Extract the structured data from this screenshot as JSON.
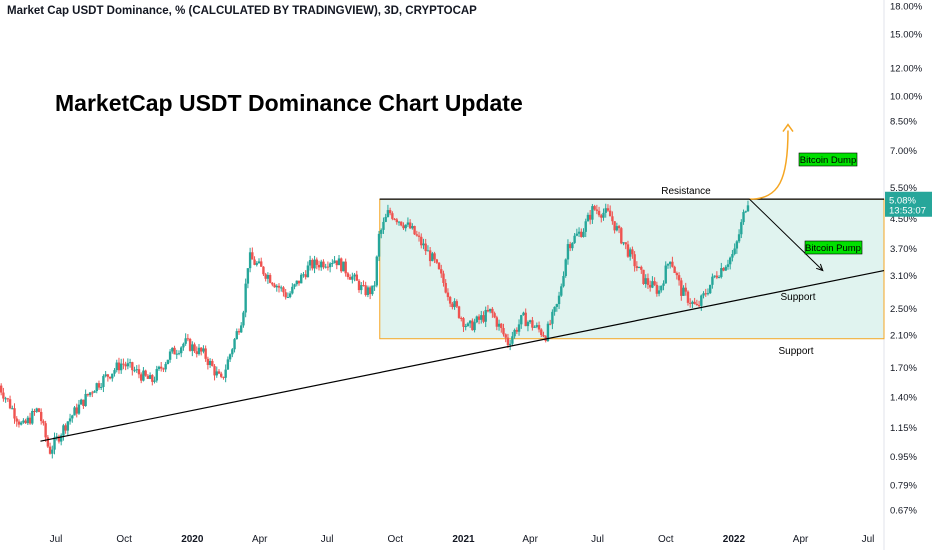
{
  "header": {
    "symbol_line": "Market Cap USDT Dominance, % (CALCULATED BY TRADINGVIEW), 3D, CRYPTOCAP"
  },
  "annotations": {
    "title": "MarketCap USDT Dominance Chart Update",
    "resistance": "Resistance",
    "support_upper": "Support",
    "support_lower": "Support",
    "bitcoin_dump": "Bitcoin Dump",
    "bitcoin_pump": "Bitcoin Pump"
  },
  "price_tag": {
    "value": "5.08%",
    "countdown": "13:53:07"
  },
  "colors": {
    "up": "#26a69a",
    "down": "#ef5350",
    "zone_fill": "#e0f3ef",
    "zone_border": "#f5a623",
    "trend_line": "#000000",
    "arrow_orange": "#f5a623",
    "label_green": "#00e000",
    "tag_bg": "#26a69a",
    "axis_text": "#131722"
  },
  "chart_data": {
    "type": "candlestick",
    "scale": "log",
    "timeframe": "3D",
    "y_ticks": [
      "18.00%",
      "15.00%",
      "12.00%",
      "10.00%",
      "8.50%",
      "7.00%",
      "5.50%",
      "4.50%",
      "3.70%",
      "3.10%",
      "2.50%",
      "2.10%",
      "1.70%",
      "1.40%",
      "1.15%",
      "0.95%",
      "0.79%",
      "0.67%"
    ],
    "y_tick_values": [
      18,
      15,
      12,
      10,
      8.5,
      7,
      5.5,
      4.5,
      3.7,
      3.1,
      2.5,
      2.1,
      1.7,
      1.4,
      1.15,
      0.95,
      0.79,
      0.67
    ],
    "x_ticks": [
      "Jul",
      "Oct",
      "2020",
      "Apr",
      "Jul",
      "Oct",
      "2021",
      "Apr",
      "Jul",
      "Oct",
      "2022",
      "Apr",
      "Jul"
    ],
    "x_tick_dates": [
      "2019-07-01",
      "2019-10-01",
      "2020-01-01",
      "2020-04-01",
      "2020-07-01",
      "2020-10-01",
      "2021-01-01",
      "2021-04-01",
      "2021-07-01",
      "2021-10-01",
      "2022-01-01",
      "2022-04-01",
      "2022-07-01"
    ],
    "path": [
      [
        "2019-04-15",
        1.55
      ],
      [
        "2019-05-20",
        1.15
      ],
      [
        "2019-06-10",
        1.3
      ],
      [
        "2019-06-25",
        0.98
      ],
      [
        "2019-07-20",
        1.2
      ],
      [
        "2019-08-25",
        1.5
      ],
      [
        "2019-10-01",
        1.75
      ],
      [
        "2019-11-10",
        1.55
      ],
      [
        "2019-12-05",
        1.85
      ],
      [
        "2019-12-25",
        2.0
      ],
      [
        "2020-01-20",
        1.85
      ],
      [
        "2020-02-12",
        1.55
      ],
      [
        "2020-03-12",
        2.4
      ],
      [
        "2020-03-20",
        3.5
      ],
      [
        "2020-04-15",
        3.1
      ],
      [
        "2020-05-12",
        2.7
      ],
      [
        "2020-06-10",
        3.3
      ],
      [
        "2020-07-15",
        3.45
      ],
      [
        "2020-08-05",
        3.1
      ],
      [
        "2020-08-22",
        2.8
      ],
      [
        "2020-09-05",
        2.8
      ],
      [
        "2020-09-12",
        4.0
      ],
      [
        "2020-09-25",
        4.7
      ],
      [
        "2020-10-25",
        4.2
      ],
      [
        "2020-11-25",
        3.4
      ],
      [
        "2020-12-20",
        2.6
      ],
      [
        "2021-01-10",
        2.2
      ],
      [
        "2021-02-10",
        2.45
      ],
      [
        "2021-03-05",
        2.0
      ],
      [
        "2021-03-25",
        2.35
      ],
      [
        "2021-04-25",
        2.1
      ],
      [
        "2021-05-12",
        2.6
      ],
      [
        "2021-05-25",
        3.8
      ],
      [
        "2021-06-15",
        4.2
      ],
      [
        "2021-06-28",
        4.8
      ],
      [
        "2021-07-20",
        4.6
      ],
      [
        "2021-08-15",
        3.6
      ],
      [
        "2021-09-05",
        3.0
      ],
      [
        "2021-09-25",
        2.8
      ],
      [
        "2021-10-10",
        3.5
      ],
      [
        "2021-10-25",
        2.8
      ],
      [
        "2021-11-15",
        2.5
      ],
      [
        "2021-12-10",
        3.1
      ],
      [
        "2022-01-05",
        3.6
      ],
      [
        "2022-01-22",
        5.08
      ]
    ],
    "current_value": 5.08,
    "horizontal_lines": [
      {
        "label": "Resistance",
        "value": 5.1
      }
    ],
    "range_box": {
      "from": "2020-09-10",
      "to": "2022-07-31",
      "top": 5.1,
      "bottom": 2.05
    },
    "trendlines": [
      {
        "label": "Support",
        "from": [
          "2019-06-10",
          1.05
        ],
        "to": [
          "2022-07-31",
          3.2
        ]
      }
    ],
    "projections": [
      {
        "label": "Bitcoin Dump",
        "from": [
          "2022-01-22",
          5.1
        ],
        "to": [
          "2022-03-15",
          8.3
        ]
      },
      {
        "label": "Bitcoin Pump",
        "from": [
          "2022-01-22",
          5.1
        ],
        "to": [
          "2022-05-01",
          3.2
        ]
      }
    ],
    "grid": false
  }
}
